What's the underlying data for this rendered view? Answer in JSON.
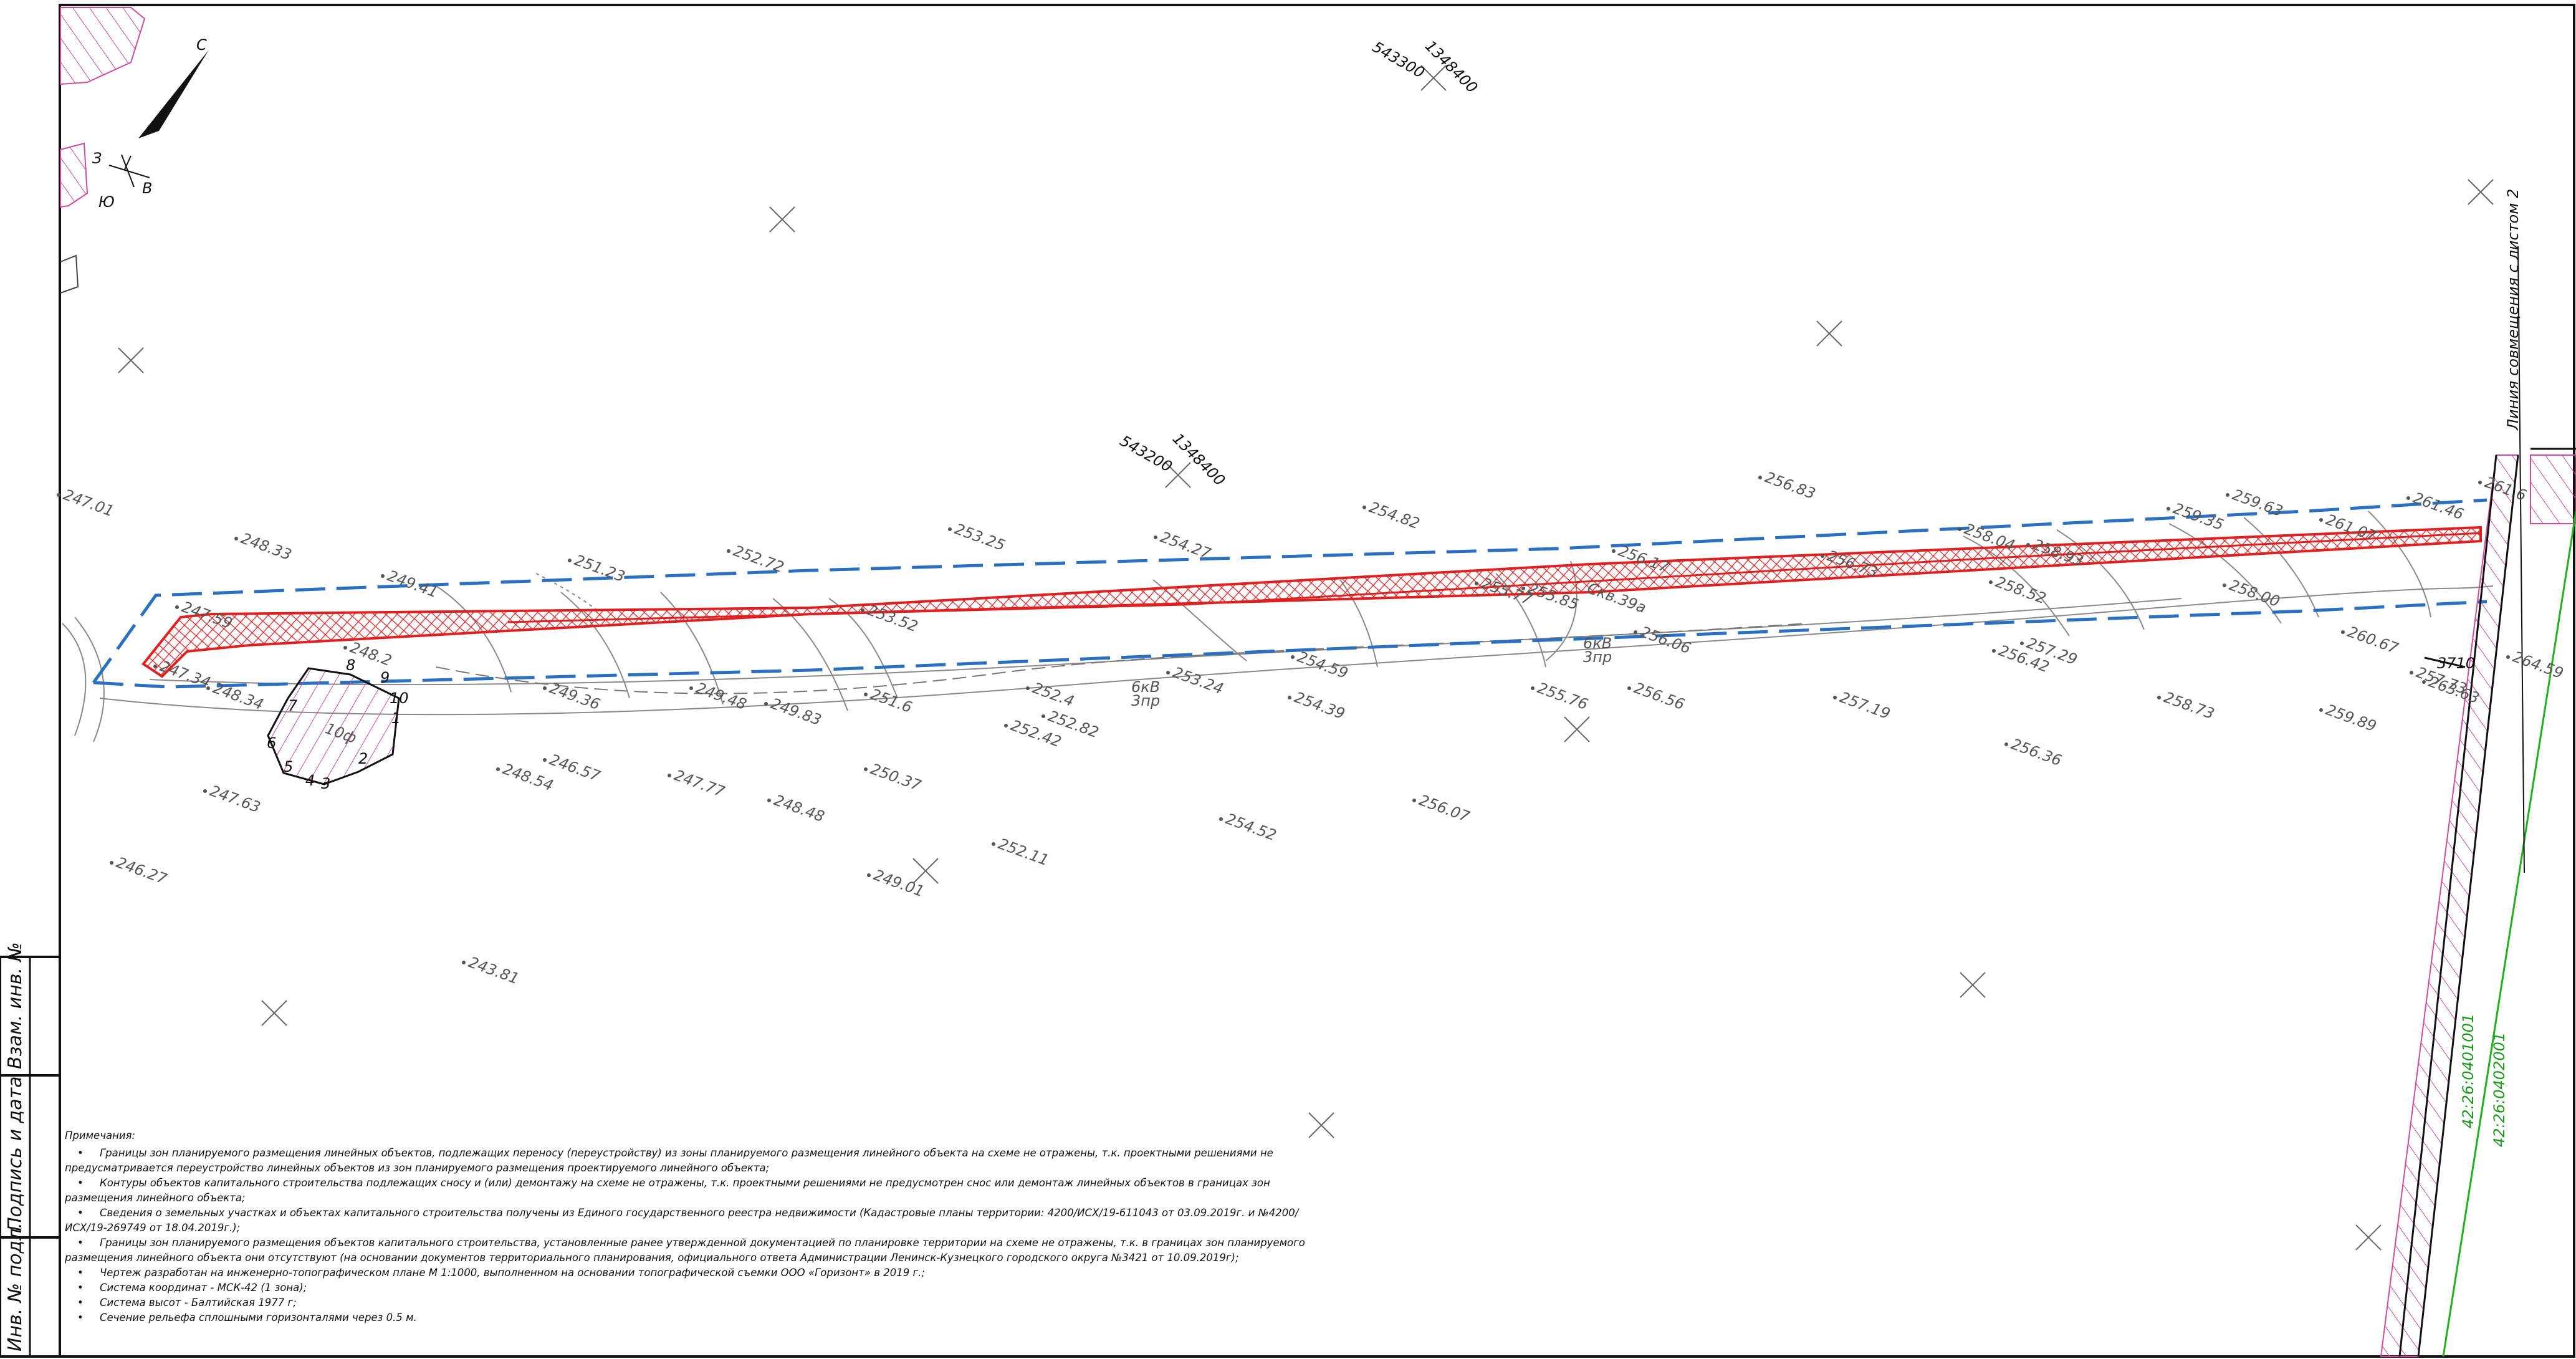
{
  "stamp": {
    "inv_replace": "Взам. инв. №",
    "signature_date": "Подпись и дата",
    "inv_original": "Инв. № подл."
  },
  "orientation": {
    "north": "С",
    "west": "З",
    "east": "В",
    "south": "Ю"
  },
  "grid_coordinates": [
    {
      "north": "543300",
      "east": "1348400"
    },
    {
      "north": "543200",
      "east": "1348400"
    }
  ],
  "sheet_join_label": "Линия совмещения с листом 2",
  "cadastral_numbers": [
    "42:26:0401001",
    "42:26:0402001"
  ],
  "parcel_label": "3710",
  "parcel_vertices": [
    "8",
    "9",
    "10",
    "1",
    "2",
    "3",
    "4",
    "5",
    "6",
    "7"
  ],
  "structure_labels": [
    "10ф",
    "Скв.39а",
    "6кВ",
    "3пр",
    "6кВ",
    "3пр"
  ],
  "spot_heights": [
    "247.01",
    "248.33",
    "249.41",
    "251.23",
    "252.72",
    "253.25",
    "254.27",
    "254.82",
    "256.83",
    "256.17",
    "256.73",
    "258.04",
    "258.93",
    "259.35",
    "259.63",
    "261.07",
    "261.46",
    "261.6",
    "247.59",
    "247.34",
    "248.34",
    "249.36",
    "249.48",
    "249.83",
    "251.6",
    "252.4",
    "253.24",
    "254.39",
    "254.59",
    "255.77",
    "255.85",
    "256.06",
    "256.56",
    "257.19",
    "258.73",
    "259.89",
    "255.76",
    "256.42",
    "256.36",
    "257.29",
    "258.00",
    "247.63",
    "246.27",
    "248.54",
    "246.57",
    "247.77",
    "248.48",
    "250.37",
    "249.01",
    "252.42",
    "252.82",
    "252.11",
    "254.52",
    "256.07",
    "243.81",
    "248.2",
    "253.52",
    "258.52",
    "257.73",
    "260.67",
    "264.59",
    "263.63"
  ],
  "notes": {
    "title": "Примечания:",
    "items": [
      "Границы зон планируемого размещения линейных объектов, подлежащих переносу (переустройству) из зоны планируемого размещения линейного объекта на схеме не отражены, т.к. проектными решениями не предусматривается переустройство линейных объектов из зон планируемого размещения проектируемого линейного объекта;",
      "Контуры объектов капитального строительства подлежащих сносу и (или) демонтажу на схеме не отражены, т.к. проектными решениями не предусмотрен снос или демонтаж линейных объектов в границах зон размещения линейного объекта;",
      "Сведения о земельных участках и объектах капитального строительства получены из Единого государственного реестра недвижимости (Кадастровые планы территории: 4200/ИСХ/19-611043 от 03.09.2019г. и №4200/ИСХ/19-269749 от 18.04.2019г.);",
      "Границы зон планируемого размещения объектов капитального строительства, установленные ранее утвержденной документацией по планировке территории на схеме не отражены, т.к. в границах зон планируемого размещения линейного объекта они отсутствуют (на основании документов территориального планирования, официального ответа Администрации Ленинск-Кузнецкого городского округа №3421 от 10.09.2019г);",
      "Чертеж разработан на инженерно-топографическом плане  М 1:1000, выполненном на основании топографической съемки ООО «Горизонт» в 2019 г.;",
      "Система координат - МСК-42 (1 зона);",
      "Система высот - Балтийская 1977 г;",
      "Сечение рельефа сплошными горизонталями через 0.5 м."
    ]
  },
  "colors": {
    "zone_boundary": "#2a6fc0",
    "placement_zone": "#e02020",
    "cadastral_line": "#20b020",
    "hatch_pink": "#d04aa0",
    "frame": "#111111",
    "relief": "#777777"
  }
}
